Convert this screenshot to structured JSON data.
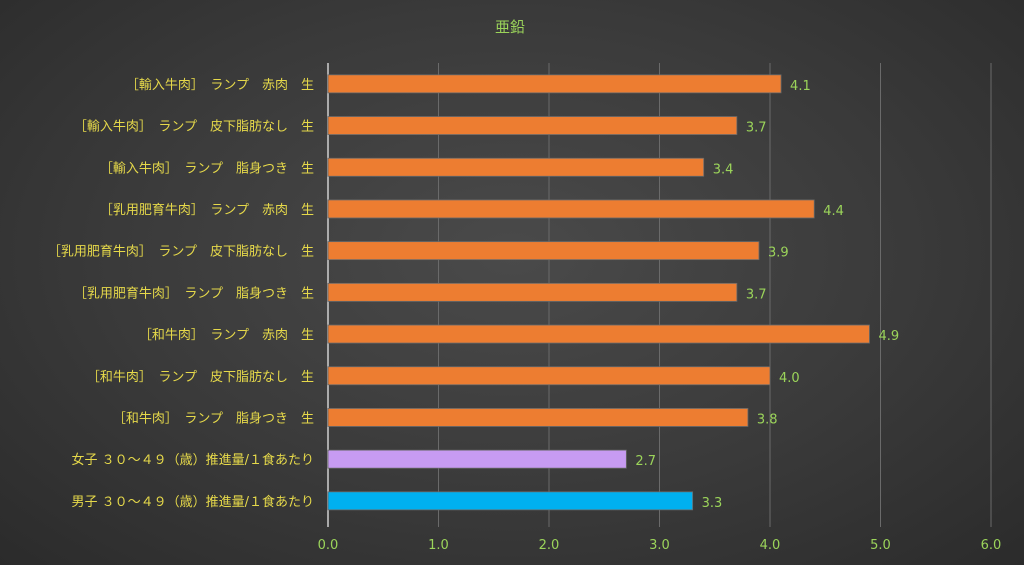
{
  "chart_data": {
    "type": "bar",
    "orientation": "horizontal",
    "title": "亜鉛",
    "xlabel": "",
    "ylabel": "",
    "xlim": [
      0,
      6
    ],
    "xticks": [
      "0.0",
      "1.0",
      "2.0",
      "3.0",
      "4.0",
      "5.0",
      "6.0"
    ],
    "grid": true,
    "categories": [
      "［輸入牛肉］　ランプ　赤肉　生",
      "［輸入牛肉］　ランプ　皮下脂肪なし　生",
      "［輸入牛肉］　ランプ　脂身つき　生",
      "［乳用肥育牛肉］　ランプ　赤肉　生",
      "［乳用肥育牛肉］　ランプ　皮下脂肪なし　生",
      "［乳用肥育牛肉］　ランプ　脂身つき　生",
      "［和牛肉］　ランプ　赤肉　生",
      "［和牛肉］　ランプ　皮下脂肪なし　生",
      "［和牛肉］　ランプ　脂身つき　生",
      "女子 ３０～４９（歳）推進量/１食あたり",
      "男子 ３０～４９（歳）推進量/１食あたり"
    ],
    "values": [
      4.1,
      3.7,
      3.4,
      4.4,
      3.9,
      3.7,
      4.9,
      4.0,
      3.8,
      2.7,
      3.3
    ],
    "value_labels": [
      "4.1",
      "3.7",
      "3.4",
      "4.4",
      "3.9",
      "3.7",
      "4.9",
      "4.0",
      "3.8",
      "2.7",
      "3.3"
    ],
    "colors": [
      "#ed7d31",
      "#ed7d31",
      "#ed7d31",
      "#ed7d31",
      "#ed7d31",
      "#ed7d31",
      "#ed7d31",
      "#ed7d31",
      "#ed7d31",
      "#c79bf2",
      "#00b0f0"
    ]
  }
}
